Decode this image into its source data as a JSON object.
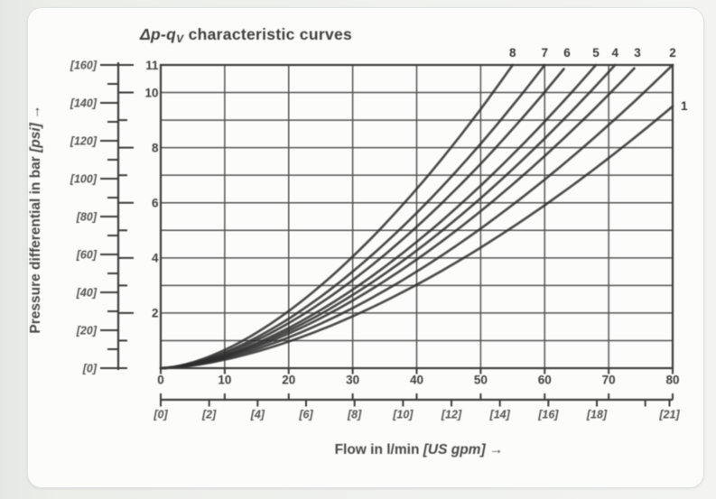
{
  "page": {
    "background_color": "#e9ebe8",
    "card_color": "#fcfcfb",
    "card_border_color": "#e0e3e3"
  },
  "chart_data": {
    "type": "line",
    "title": "Δp-qV characteristic curves",
    "title_parts": {
      "symbol": "Δp-q",
      "subscript": "V",
      "rest": " characteristic curves"
    },
    "xlabel": "Flow in l/min [US gpm] →",
    "xlabel_parts": {
      "main": "Flow in l/min ",
      "bracket": "[US gpm]",
      "arrow": " →"
    },
    "ylabel": "Pressure differential in bar [psi] →",
    "ylabel_parts": {
      "main": "Pressure differential in bar ",
      "bracket": "[psi]",
      "arrow": " →"
    },
    "grid": {
      "on": true,
      "x_step": 10,
      "y_step": 1
    },
    "x_axis": {
      "unit": "l/min",
      "range": [
        0,
        80
      ],
      "ticks": [
        0,
        10,
        20,
        30,
        40,
        50,
        60,
        70,
        80
      ]
    },
    "x_axis_secondary": {
      "unit": "US gpm",
      "range": [
        0,
        21.13
      ],
      "labeled_ticks": [
        0,
        2,
        4,
        6,
        8,
        10,
        12,
        14,
        16,
        18,
        21
      ],
      "unlabeled_ticks": [
        20
      ],
      "label_format": "bracketed-italic"
    },
    "y_axis": {
      "unit": "bar",
      "range": [
        0,
        11
      ],
      "labeled_ticks": [
        2,
        4,
        6,
        8,
        10,
        11
      ],
      "minor_ticks": [
        1,
        3,
        5,
        7,
        9
      ]
    },
    "y_axis_secondary": {
      "unit": "psi",
      "range": [
        0,
        160
      ],
      "labeled_ticks": [
        0,
        20,
        40,
        60,
        80,
        100,
        120,
        140,
        160
      ],
      "minor_ticks": [
        10,
        30,
        50,
        70,
        90,
        110,
        130,
        150
      ],
      "label_format": "bracketed-italic"
    },
    "series": [
      {
        "label": "1",
        "q_max": 80,
        "p_at_q_max": 9.5,
        "exponent": 1.65,
        "label_side": "right",
        "points": [
          [
            0,
            0
          ],
          [
            10,
            0.3
          ],
          [
            20,
            1.0
          ],
          [
            30,
            1.9
          ],
          [
            40,
            3.0
          ],
          [
            50,
            4.4
          ],
          [
            60,
            5.9
          ],
          [
            70,
            7.6
          ],
          [
            80,
            9.5
          ]
        ]
      },
      {
        "label": "2",
        "q_max": 80,
        "p_at_q_max": 11,
        "exponent": 1.65,
        "label_side": "top",
        "points": [
          [
            0,
            0
          ],
          [
            10,
            0.4
          ],
          [
            20,
            1.1
          ],
          [
            30,
            2.2
          ],
          [
            40,
            3.5
          ],
          [
            50,
            5.1
          ],
          [
            60,
            6.8
          ],
          [
            70,
            8.8
          ],
          [
            80,
            11.0
          ]
        ]
      },
      {
        "label": "3",
        "q_max": 74.5,
        "p_at_q_max": 11,
        "exponent": 1.65,
        "label_side": "top",
        "points": [
          [
            0,
            0
          ],
          [
            10,
            0.4
          ],
          [
            20,
            1.3
          ],
          [
            30,
            2.5
          ],
          [
            40,
            3.9
          ],
          [
            50,
            5.7
          ],
          [
            60,
            7.7
          ],
          [
            70,
            9.9
          ],
          [
            74.5,
            11.0
          ]
        ]
      },
      {
        "label": "4",
        "q_max": 71,
        "p_at_q_max": 11,
        "exponent": 1.65,
        "label_side": "top",
        "points": [
          [
            0,
            0
          ],
          [
            10,
            0.4
          ],
          [
            20,
            1.4
          ],
          [
            30,
            2.7
          ],
          [
            40,
            4.3
          ],
          [
            50,
            6.2
          ],
          [
            60,
            8.3
          ],
          [
            70,
            10.8
          ],
          [
            71,
            11.0
          ]
        ]
      },
      {
        "label": "5",
        "q_max": 68,
        "p_at_q_max": 11,
        "exponent": 1.65,
        "label_side": "top",
        "points": [
          [
            0,
            0
          ],
          [
            10,
            0.5
          ],
          [
            20,
            1.5
          ],
          [
            30,
            2.9
          ],
          [
            40,
            4.6
          ],
          [
            50,
            6.6
          ],
          [
            60,
            8.9
          ],
          [
            68,
            11.0
          ]
        ]
      },
      {
        "label": "6",
        "q_max": 63.5,
        "p_at_q_max": 11,
        "exponent": 1.65,
        "label_side": "top",
        "points": [
          [
            0,
            0
          ],
          [
            10,
            0.5
          ],
          [
            20,
            1.6
          ],
          [
            30,
            3.2
          ],
          [
            40,
            5.1
          ],
          [
            50,
            7.4
          ],
          [
            60,
            10.0
          ],
          [
            63.5,
            11.0
          ]
        ]
      },
      {
        "label": "7",
        "q_max": 60,
        "p_at_q_max": 11,
        "exponent": 1.65,
        "label_side": "top",
        "points": [
          [
            0,
            0
          ],
          [
            10,
            0.6
          ],
          [
            20,
            1.8
          ],
          [
            30,
            3.5
          ],
          [
            40,
            5.6
          ],
          [
            50,
            8.1
          ],
          [
            60,
            11.0
          ]
        ]
      },
      {
        "label": "8",
        "q_max": 55,
        "p_at_q_max": 11,
        "exponent": 1.65,
        "label_side": "top",
        "points": [
          [
            0,
            0
          ],
          [
            10,
            0.7
          ],
          [
            20,
            2.1
          ],
          [
            30,
            4.1
          ],
          [
            40,
            6.5
          ],
          [
            50,
            9.4
          ],
          [
            55,
            11.0
          ]
        ]
      }
    ],
    "colors": {
      "curve": "#2b2b2b",
      "grid": "#535353",
      "axis": "#3a3a3a",
      "text": "#3d3d3d"
    }
  }
}
